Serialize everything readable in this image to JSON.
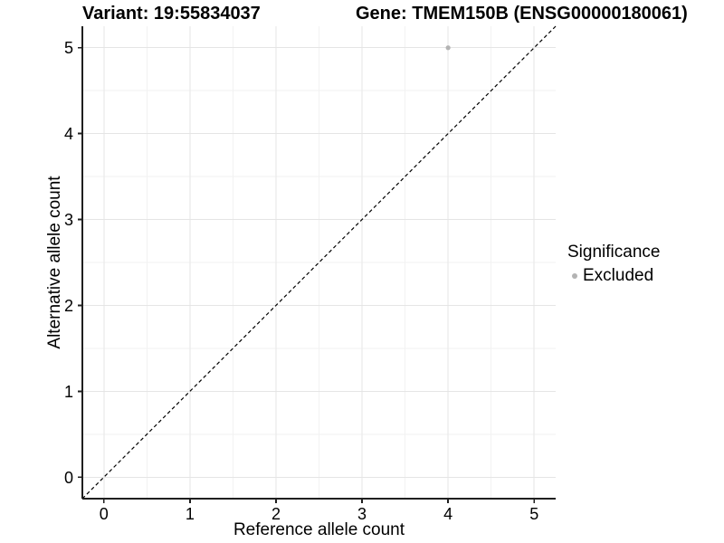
{
  "titles": {
    "variant": "Variant: 19:55834037",
    "gene": "Gene: TMEM150B (ENSG00000180061)"
  },
  "axes": {
    "x": {
      "label": "Reference allele count",
      "ticks": [
        "0",
        "1",
        "2",
        "3",
        "4",
        "5"
      ]
    },
    "y": {
      "label": "Alternative allele count",
      "ticks": [
        "0",
        "1",
        "2",
        "3",
        "4",
        "5"
      ]
    }
  },
  "legend": {
    "title": "Significance",
    "items": [
      {
        "label": "Excluded",
        "color": "#b3b3b3"
      }
    ]
  },
  "colors": {
    "background": "#ffffff",
    "grid_major": "#e5e5e5",
    "grid_minor": "#f2f2f2",
    "axis": "#1f1f1f",
    "text": "#000000",
    "reference_line": "#000000"
  },
  "chart_data": {
    "type": "scatter",
    "title": "Variant: 19:55834037   Gene: TMEM150B (ENSG00000180061)",
    "xlabel": "Reference allele count",
    "ylabel": "Alternative allele count",
    "xlim": [
      -0.25,
      5.25
    ],
    "ylim": [
      -0.25,
      5.25
    ],
    "x_ticks": [
      0,
      1,
      2,
      3,
      4,
      5
    ],
    "y_ticks": [
      0,
      1,
      2,
      3,
      4,
      5
    ],
    "grid": true,
    "minor_grid": true,
    "legend_position": "right",
    "series": [
      {
        "name": "Excluded",
        "color": "#b3b3b3",
        "points": [
          {
            "x": 4,
            "y": 5
          }
        ]
      }
    ],
    "reference_line": {
      "equation": "y = x",
      "style": "dashed",
      "color": "#000000",
      "from": [
        -0.25,
        -0.25
      ],
      "to": [
        5.25,
        5.25
      ]
    }
  }
}
